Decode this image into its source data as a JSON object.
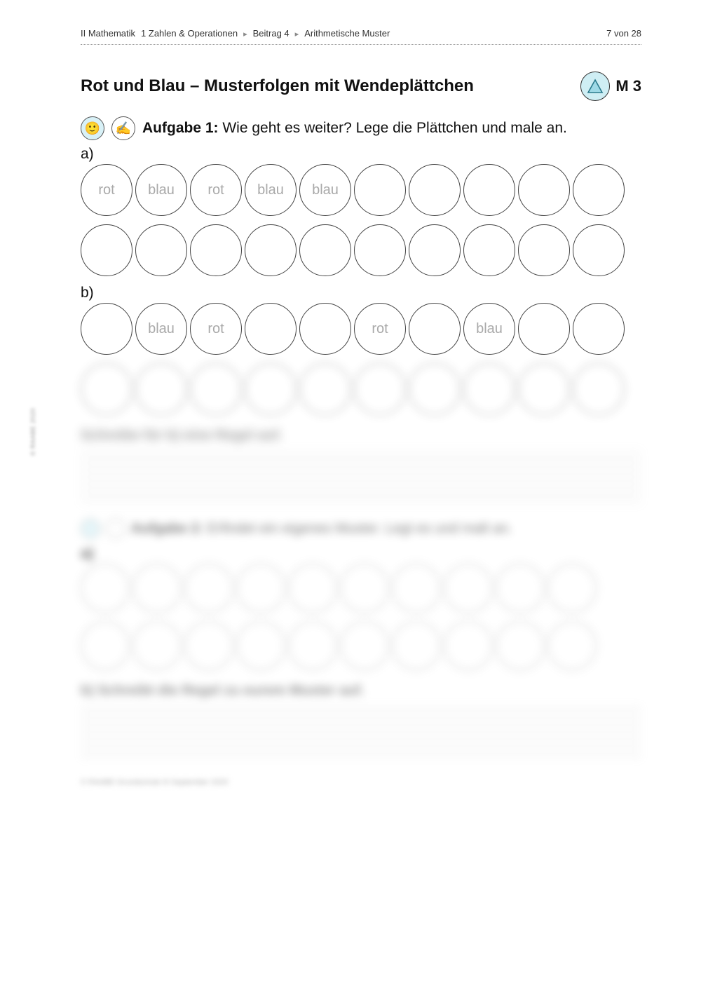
{
  "header": {
    "breadcrumb": [
      "II Mathematik",
      "1 Zahlen & Operationen",
      "Beitrag 4",
      "Arithmetische Muster"
    ],
    "page_indicator": "7 von 28"
  },
  "title": "Rot und Blau – Musterfolgen mit Wendeplättchen",
  "module_label": "M 3",
  "task1": {
    "prefix": "Aufgabe 1:",
    "text": "Wie geht es weiter? Lege die Plättchen und male an.",
    "parts": {
      "a": {
        "label": "a)",
        "rows": [
          [
            "rot",
            "blau",
            "rot",
            "blau",
            "blau",
            "",
            "",
            "",
            "",
            ""
          ],
          [
            "",
            "",
            "",
            "",
            "",
            "",
            "",
            "",
            "",
            ""
          ]
        ]
      },
      "b": {
        "label": "b)",
        "rows": [
          [
            "",
            "blau",
            "rot",
            "",
            "",
            "rot",
            "",
            "blau",
            "",
            ""
          ],
          [
            "",
            "",
            "",
            "",
            "",
            "",
            "",
            "",
            "",
            ""
          ]
        ]
      }
    }
  },
  "blurred_section1": {
    "heading": "Schreibe für b) eine Regel auf.",
    "line_groups": [
      4,
      4
    ]
  },
  "task2": {
    "icons_count": 2,
    "prefix": "Aufgabe 2:",
    "text": "Erfindet ein eigenes Muster. Legt es und malt an.",
    "label_a": "a)",
    "rows": [
      [
        "",
        "",
        "",
        "",
        "",
        "",
        "",
        "",
        "",
        ""
      ],
      [
        "",
        "",
        "",
        "",
        "",
        "",
        "",
        "",
        "",
        ""
      ]
    ],
    "heading_b": "b) Schreibt die Regel zu eurem Muster auf.",
    "line_groups": [
      4,
      4
    ]
  },
  "footer": "© RAABE Grundschule III September 2020",
  "side_text": "© RAABE 2020",
  "colors": {
    "text": "#111111",
    "faded_text": "#a9a9a9",
    "circle_border": "#444444",
    "icon_bg": "#cfeef4",
    "rule": "#999999"
  }
}
